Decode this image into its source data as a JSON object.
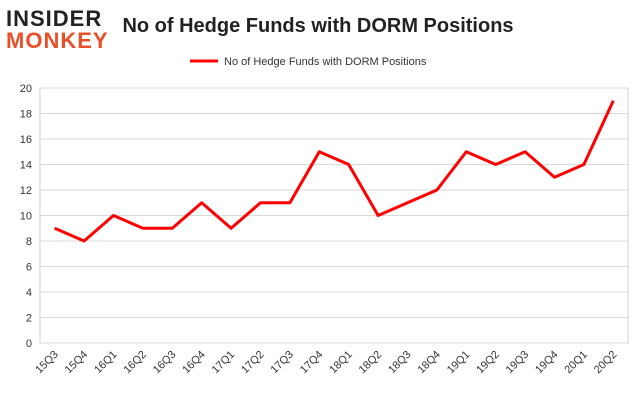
{
  "logo": {
    "top": "INSIDER",
    "bottom": "MONKEY"
  },
  "chart_data": {
    "type": "line",
    "title": "No of Hedge Funds with DORM Positions",
    "categories": [
      "15Q3",
      "15Q4",
      "16Q1",
      "16Q2",
      "16Q3",
      "16Q4",
      "17Q1",
      "17Q2",
      "17Q3",
      "17Q4",
      "18Q1",
      "18Q2",
      "18Q3",
      "18Q4",
      "19Q1",
      "19Q2",
      "19Q3",
      "19Q4",
      "20Q1",
      "20Q2"
    ],
    "series": [
      {
        "name": "No of Hedge Funds with DORM Positions",
        "color": "#ff0000",
        "values": [
          9,
          8,
          10,
          9,
          9,
          11,
          9,
          11,
          11,
          15,
          14,
          10,
          11,
          12,
          15,
          14,
          15,
          13,
          14,
          19
        ]
      }
    ],
    "ylim": [
      0,
      20
    ],
    "yticks": [
      0,
      2,
      4,
      6,
      8,
      10,
      12,
      14,
      16,
      18,
      20
    ],
    "grid": true,
    "legend": "top"
  }
}
